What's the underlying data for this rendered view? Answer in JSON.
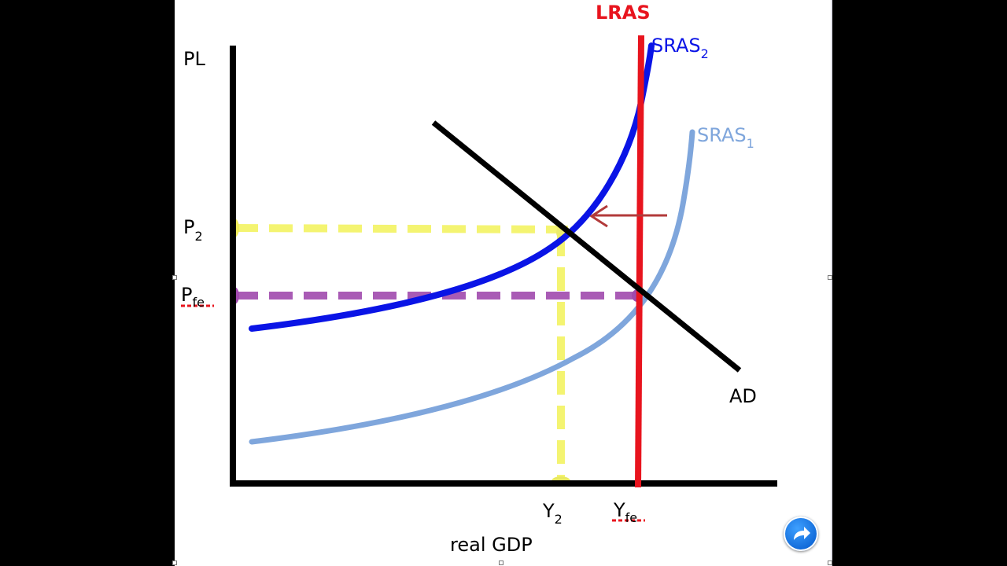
{
  "diagram": {
    "axis_y_label": "PL",
    "axis_x_label": "real GDP",
    "lras_label": "LRAS",
    "sras2": {
      "label": "SRAS",
      "sub": "2"
    },
    "sras1": {
      "label": "SRAS",
      "sub": "1"
    },
    "ad_label": "AD",
    "p2": {
      "label": "P",
      "sub": "2"
    },
    "pfe": {
      "label": "P",
      "sub": "fe"
    },
    "y2": {
      "label": "Y",
      "sub": "2"
    },
    "yfe": {
      "label": "Y",
      "sub": "fe"
    }
  },
  "colors": {
    "lras": "#e8141e",
    "sras2": "#0a14e6",
    "sras1": "#7fa6dc",
    "ad": "#000000",
    "p2_guide": "#f4f46a",
    "pfe_guide": "#a04aae",
    "arrow": "#b23a3a",
    "annotation": "#e8141e"
  },
  "controls": {
    "share_icon": "share-arrow-icon"
  }
}
